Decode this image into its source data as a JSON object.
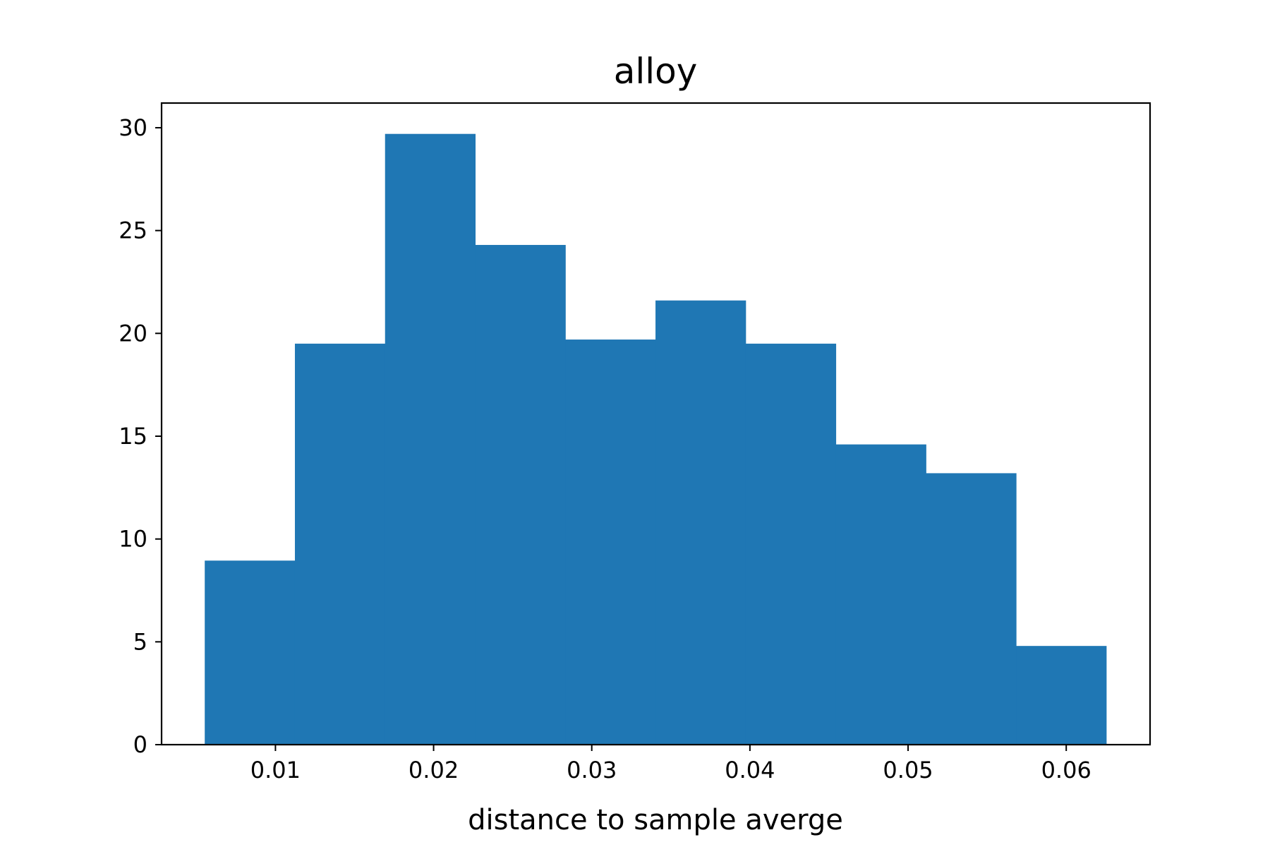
{
  "chart_data": {
    "type": "bar",
    "title": "alloy",
    "xlabel": "distance to sample averge",
    "ylabel": "",
    "bar_color": "#1f77b4",
    "bin_edges": [
      0.00553,
      0.01123,
      0.01693,
      0.02263,
      0.02833,
      0.03403,
      0.03973,
      0.04543,
      0.05113,
      0.05683,
      0.06253
    ],
    "values": [
      8.95,
      19.5,
      29.7,
      24.3,
      19.7,
      21.6,
      19.5,
      14.6,
      13.2,
      4.8
    ],
    "xlim": [
      0.0028,
      0.0653
    ],
    "ylim": [
      0,
      31.2
    ],
    "xticks": [
      0.01,
      0.02,
      0.03,
      0.04,
      0.05,
      0.06
    ],
    "xtick_labels": [
      "0.01",
      "0.02",
      "0.03",
      "0.04",
      "0.05",
      "0.06"
    ],
    "yticks": [
      0,
      5,
      10,
      15,
      20,
      25,
      30
    ],
    "ytick_labels": [
      "0",
      "5",
      "10",
      "15",
      "20",
      "25",
      "30"
    ],
    "grid": false,
    "legend": "none"
  }
}
